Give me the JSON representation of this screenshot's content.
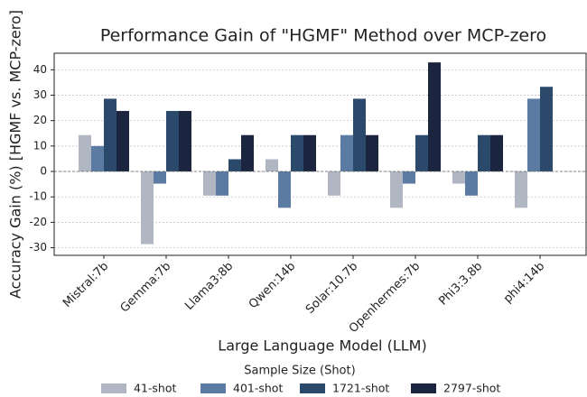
{
  "chart_data": {
    "type": "bar",
    "title": "Performance Gain of \"HGMF\" Method over MCP-zero",
    "x_label": "Large Language Model (LLM)",
    "y_label": "Accuracy Gain (%) [HGMF vs. MCP-zero]",
    "legend_title": "Sample Size (Shot)",
    "legend_position": "bottom",
    "grid": true,
    "categories": [
      "Mistral:7b",
      "Gemma:7b",
      "Llama3:8b",
      "Qwen:14b",
      "Solar:10.7b",
      "Openhermes:7b",
      "Phi3:3.8b",
      "phi4:14b"
    ],
    "series": [
      {
        "name": "41-shot",
        "color": "#b0b7c3",
        "values": [
          14.3,
          -28.6,
          -9.5,
          4.8,
          -9.5,
          -14.3,
          -4.8,
          -14.3
        ]
      },
      {
        "name": "401-shot",
        "color": "#5b7ba3",
        "values": [
          10,
          -4.8,
          -9.5,
          -14.3,
          14.3,
          -4.8,
          -9.5,
          28.6
        ]
      },
      {
        "name": "1721-shot",
        "color": "#2b4a6b",
        "values": [
          28.6,
          23.8,
          4.8,
          14.3,
          28.6,
          14.3,
          14.3,
          33.3
        ]
      },
      {
        "name": "2797-shot",
        "color": "#1b2540",
        "values": [
          23.8,
          23.8,
          14.3,
          14.3,
          14.3,
          42.9,
          14.3,
          0
        ]
      }
    ],
    "ylim": [
      -33,
      46.5
    ],
    "yticks": [
      -30,
      -20,
      -10,
      0,
      10,
      20,
      30,
      40
    ]
  }
}
